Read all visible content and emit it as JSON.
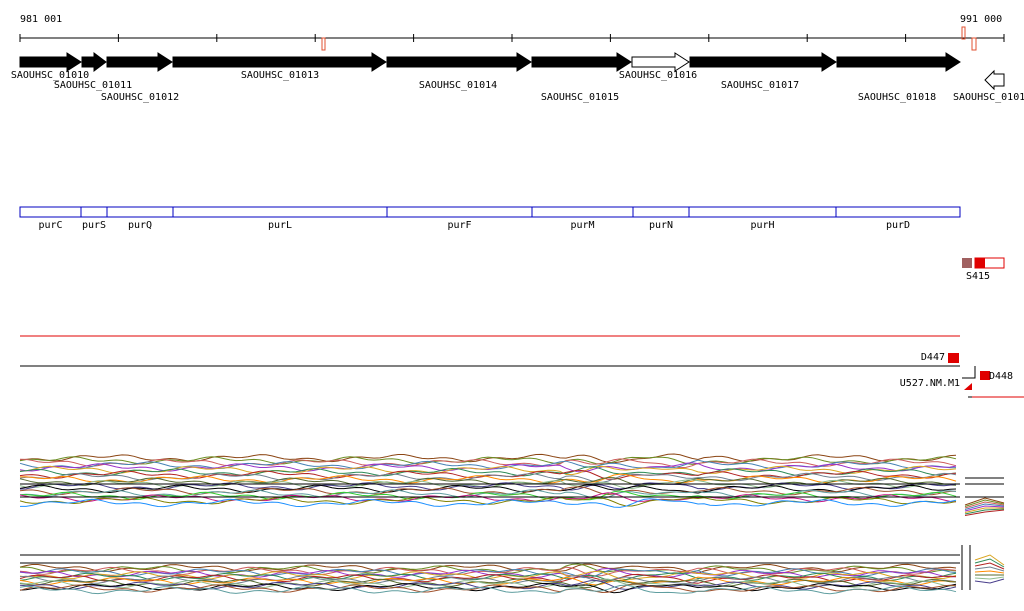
{
  "ruler": {
    "start_label": "981 001",
    "end_label": "991 000"
  },
  "genes": [
    "SAOUHSC_01010",
    "SAOUHSC_01011",
    "SAOUHSC_01012",
    "SAOUHSC_01013",
    "SAOUHSC_01014",
    "SAOUHSC_01015",
    "SAOUHSC_01016",
    "SAOUHSC_01017",
    "SAOUHSC_01018",
    "SAOUHSC_0101"
  ],
  "operons": [
    "purC",
    "purS",
    "purQ",
    "purL",
    "purF",
    "purM",
    "purN",
    "purH",
    "purD"
  ],
  "features": [
    "S415",
    "D447",
    "D448",
    "U527.NM.M1"
  ]
}
